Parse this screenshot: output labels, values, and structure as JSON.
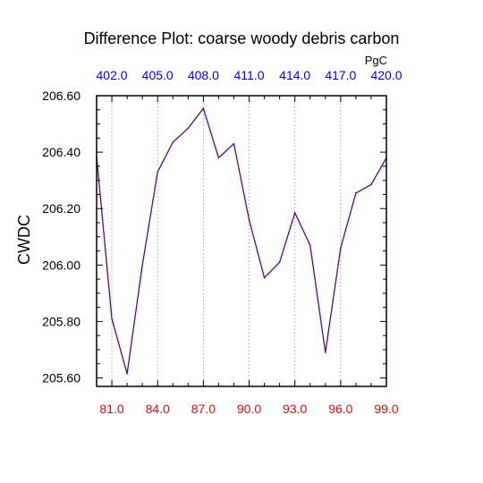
{
  "chart_data": {
    "type": "line",
    "title": "Difference Plot: coarse woody debris carbon",
    "ylabel": "CWDC",
    "top_axis_unit": "PgC",
    "xlim": [
      80,
      99
    ],
    "ylim": [
      205.57,
      206.6
    ],
    "grid": "vertical dashed",
    "x_ticks": [
      {
        "value": 81,
        "label": "81.0"
      },
      {
        "value": 84,
        "label": "84.0"
      },
      {
        "value": 87,
        "label": "87.0"
      },
      {
        "value": 90,
        "label": "90.0"
      },
      {
        "value": 93,
        "label": "93.0"
      },
      {
        "value": 96,
        "label": "96.0"
      },
      {
        "value": 99,
        "label": "99.0"
      }
    ],
    "top_ticks": [
      {
        "value": 81,
        "label": "402.0"
      },
      {
        "value": 84,
        "label": "405.0"
      },
      {
        "value": 87,
        "label": "408.0"
      },
      {
        "value": 90,
        "label": "411.0"
      },
      {
        "value": 93,
        "label": "414.0"
      },
      {
        "value": 96,
        "label": "417.0"
      },
      {
        "value": 99,
        "label": "420.0"
      }
    ],
    "y_ticks": [
      {
        "value": 205.6,
        "label": "205.60"
      },
      {
        "value": 205.8,
        "label": "205.80"
      },
      {
        "value": 206.0,
        "label": "206.00"
      },
      {
        "value": 206.2,
        "label": "206.20"
      },
      {
        "value": 206.4,
        "label": "206.40"
      },
      {
        "value": 206.6,
        "label": "206.60"
      }
    ],
    "x": [
      80,
      81,
      82,
      83,
      84,
      85,
      86,
      87,
      88,
      89,
      90,
      91,
      92,
      93,
      94,
      95,
      96,
      97,
      98,
      99
    ],
    "series": [
      {
        "values": [
          206.385,
          205.81,
          205.615,
          206.0,
          206.33,
          206.435,
          206.485,
          206.555,
          206.38,
          206.43,
          206.16,
          205.955,
          206.01,
          206.185,
          206.07,
          205.69,
          206.06,
          206.255,
          206.285,
          206.38
        ],
        "colors": [
          "#0000ff",
          "#cc0000"
        ]
      }
    ],
    "colors": {
      "bottom_tick_labels": "#ff0000",
      "top_tick_labels": "#0000ff",
      "axes": "#000000",
      "grid": "#aaaaaa"
    }
  }
}
